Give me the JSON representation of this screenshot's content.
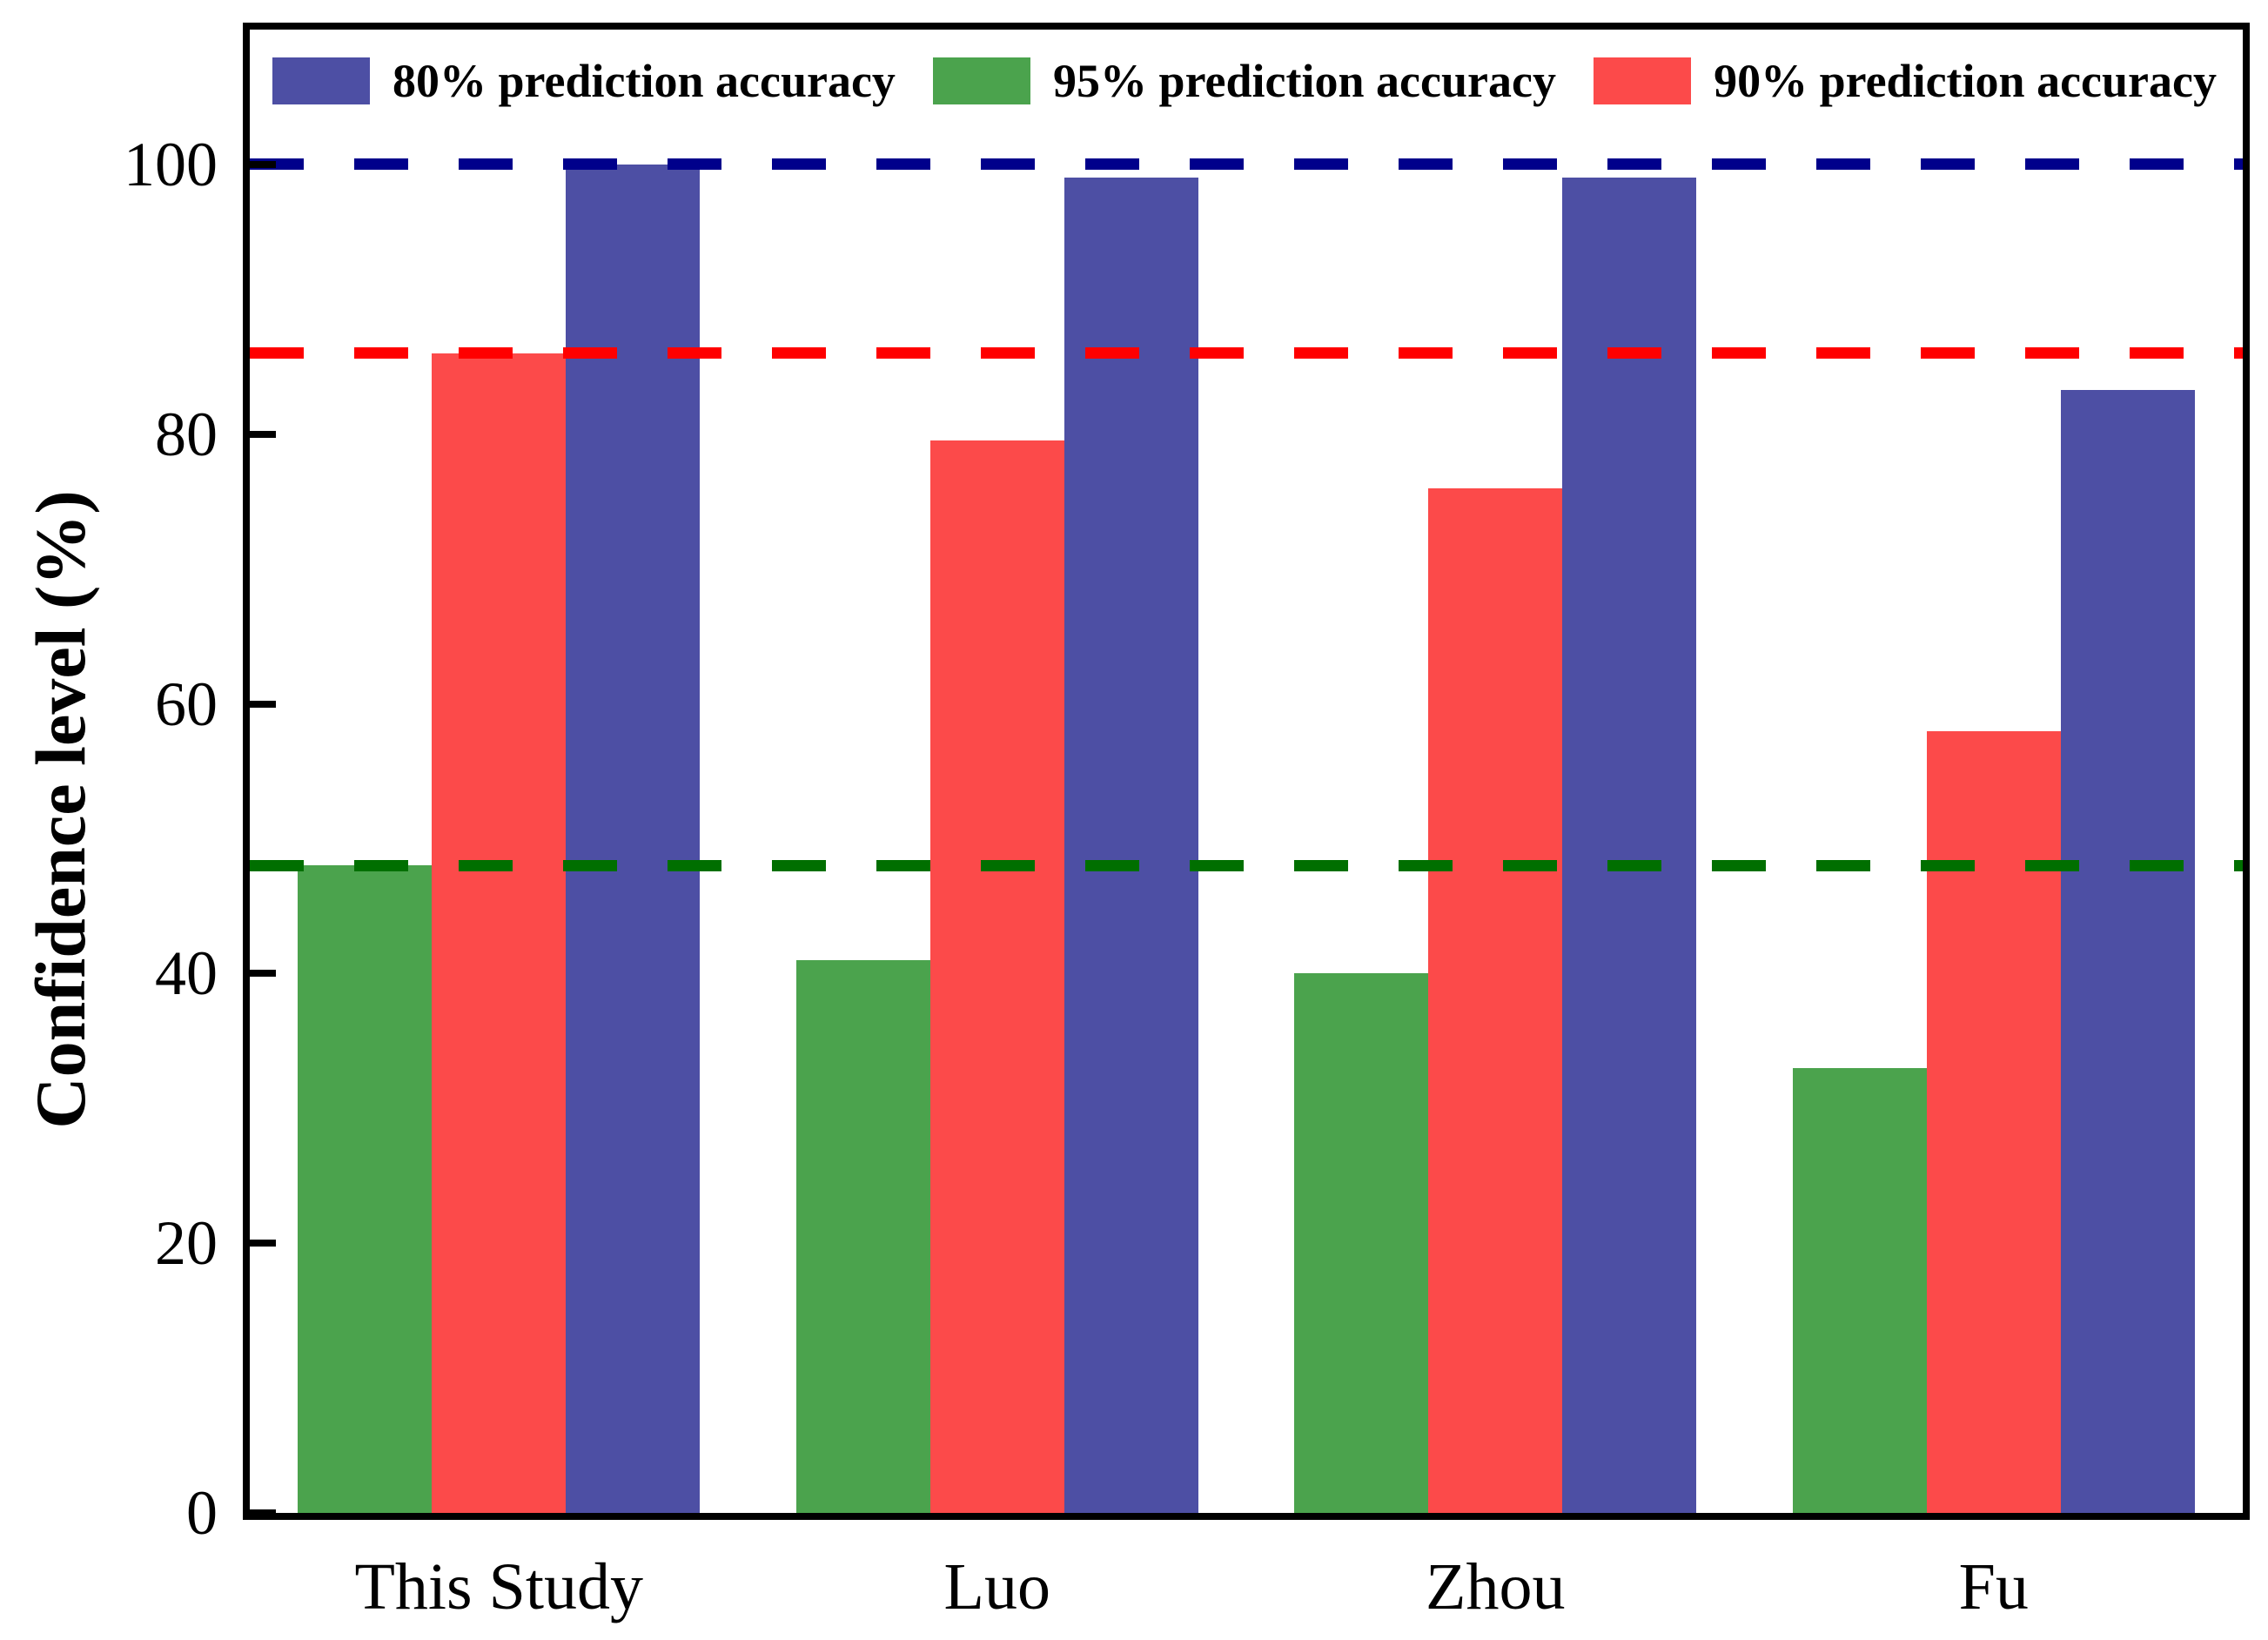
{
  "chart_data": {
    "type": "bar",
    "title": "",
    "xlabel": "",
    "ylabel": "Confidence level (%)",
    "ylim": [
      0,
      110
    ],
    "yticks": [
      0,
      20,
      40,
      60,
      80,
      100
    ],
    "grid": false,
    "legend_position": "top",
    "categories": [
      "This Study",
      "Luo",
      "Zhou",
      "Fu"
    ],
    "series": [
      {
        "name": "80% prediction accuracy",
        "color": "#4D4FA4",
        "values": [
          100,
          99,
          99,
          83.3
        ]
      },
      {
        "name": "95% prediction accuracy",
        "color": "#4BA34D",
        "values": [
          48,
          41,
          40,
          33
        ]
      },
      {
        "name": "90% prediction accuracy",
        "color": "#FC4A4A",
        "values": [
          86,
          79.5,
          76,
          58
        ]
      }
    ],
    "reference_lines": [
      {
        "series": "80% prediction accuracy",
        "value": 100,
        "color": "#00008B",
        "style": "dashed"
      },
      {
        "series": "90% prediction accuracy",
        "value": 86,
        "color": "#FF0000",
        "style": "dashed"
      },
      {
        "series": "95% prediction accuracy",
        "value": 48,
        "color": "#006F00",
        "style": "dashed"
      }
    ]
  }
}
